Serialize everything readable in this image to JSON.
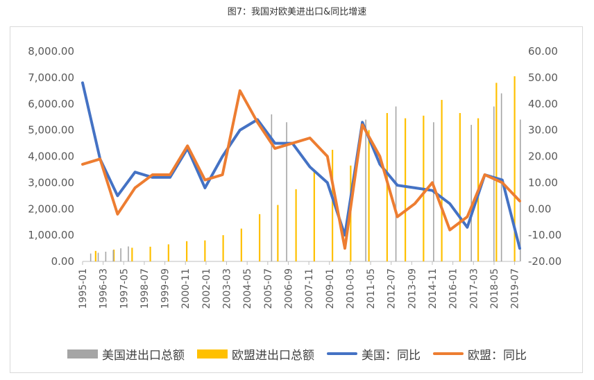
{
  "title": "图7：我国对欧美进出口&同比增速",
  "chart_data": {
    "type": "bar+line",
    "y_left": {
      "min": 0,
      "max": 8000,
      "step": 1000,
      "ticks": [
        "0.00",
        "1,000.00",
        "2,000.00",
        "3,000.00",
        "4,000.00",
        "5,000.00",
        "6,000.00",
        "7,000.00",
        "8,000.00"
      ]
    },
    "y_right": {
      "min": -20,
      "max": 60,
      "step": 10,
      "ticks": [
        "-20.00",
        "-10.00",
        "0.00",
        "10.00",
        "20.00",
        "30.00",
        "40.00",
        "50.00",
        "60.00"
      ]
    },
    "x_ticks": [
      "1995-01",
      "1996-03",
      "1997-05",
      "1998-07",
      "1999-09",
      "2000-11",
      "2002-01",
      "2003-03",
      "2004-05",
      "2005-07",
      "2006-09",
      "2007-11",
      "2009-01",
      "2010-03",
      "2011-05",
      "2012-07",
      "2013-09",
      "2014-11",
      "2016-01",
      "2017-03",
      "2018-05",
      "2019-07"
    ],
    "bars_us": [
      0,
      0,
      300,
      0,
      330,
      0,
      370,
      0,
      430,
      0,
      500,
      0,
      570,
      0,
      0,
      0,
      0,
      0,
      0,
      0,
      0,
      0,
      0,
      0,
      0,
      0,
      0,
      0,
      0,
      0,
      0,
      0,
      0,
      0,
      0,
      0,
      0,
      0,
      0,
      0,
      0,
      0,
      0,
      0,
      0,
      0,
      0,
      0,
      0,
      0,
      5600,
      0,
      0,
      0,
      5300,
      0,
      0,
      0,
      0,
      0,
      0,
      0,
      0,
      0,
      0,
      0,
      0,
      0,
      0,
      0,
      0,
      0,
      0,
      0,
      0,
      5400,
      0,
      0,
      0,
      0,
      0,
      0,
      0,
      5900,
      0,
      0,
      0,
      0,
      0,
      0,
      0,
      0,
      0,
      5300,
      0,
      0,
      0,
      0,
      0,
      0,
      0,
      0,
      0,
      5200,
      0,
      0,
      0,
      0,
      0,
      5900,
      0,
      6400,
      0,
      0,
      0,
      0,
      5400
    ],
    "bars_eu": [
      400,
      450,
      520,
      560,
      650,
      770,
      800,
      1000,
      1250,
      1800,
      2150,
      2750,
      3450,
      4250,
      3650,
      5000,
      5650,
      5450,
      5550,
      6150,
      5650,
      5450,
      6800,
      7050
    ],
    "series": [
      {
        "name": "美国：同比",
        "color": "#4472C4",
        "values": [
          48,
          19,
          5,
          14,
          12,
          12,
          23,
          8,
          20,
          30,
          34,
          25,
          25,
          16,
          10,
          -10,
          33,
          17,
          9,
          8,
          7,
          2,
          -7,
          13,
          11,
          -15
        ]
      },
      {
        "name": "欧盟：同比",
        "color": "#ED7D31",
        "values": [
          17,
          19,
          -2,
          8,
          13,
          13,
          24,
          11,
          13,
          45,
          33,
          23,
          25,
          27,
          20,
          -15,
          32,
          20,
          -3,
          2,
          10,
          -8,
          -3,
          13,
          10,
          3
        ]
      }
    ],
    "legend": [
      {
        "label": "美国进出口总额",
        "color": "#A5A5A5",
        "kind": "bar"
      },
      {
        "label": "欧盟进出口总额",
        "color": "#FFC000",
        "kind": "bar"
      },
      {
        "label": "美国：同比",
        "color": "#4472C4",
        "kind": "line"
      },
      {
        "label": "欧盟：同比",
        "color": "#ED7D31",
        "kind": "line"
      }
    ]
  }
}
